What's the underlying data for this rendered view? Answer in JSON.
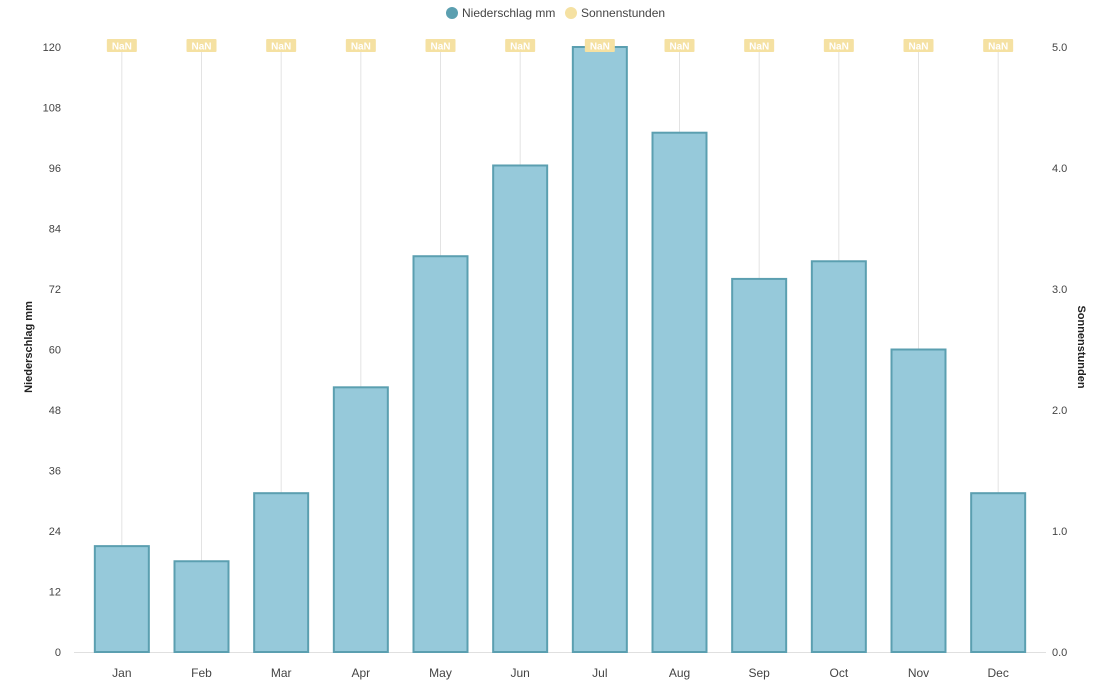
{
  "chart_data": {
    "type": "bar",
    "categories": [
      "Jan",
      "Feb",
      "Mar",
      "Apr",
      "May",
      "Jun",
      "Jul",
      "Aug",
      "Sep",
      "Oct",
      "Nov",
      "Dec"
    ],
    "series": [
      {
        "name": "Niederschlag mm",
        "type": "bar",
        "axis": "left",
        "color": "#5b9fb0",
        "fill": "#96c9da",
        "values": [
          21,
          18,
          31.5,
          52.5,
          78.5,
          96.5,
          120,
          103,
          74,
          77.5,
          60,
          31.5
        ]
      },
      {
        "name": "Sonnenstunden",
        "type": "line",
        "axis": "right",
        "color": "#f5e1a2",
        "values": [
          null,
          null,
          null,
          null,
          null,
          null,
          null,
          null,
          null,
          null,
          null,
          null
        ],
        "data_labels": [
          "NaN",
          "NaN",
          "NaN",
          "NaN",
          "NaN",
          "NaN",
          "NaN",
          "NaN",
          "NaN",
          "NaN",
          "NaN",
          "NaN"
        ]
      }
    ],
    "y_left": {
      "label": "Niederschlag mm",
      "range": [
        0,
        120
      ],
      "ticks": [
        "0",
        "12",
        "24",
        "36",
        "48",
        "60",
        "72",
        "84",
        "96",
        "108",
        "120"
      ]
    },
    "y_right": {
      "label": "Sonnenstunden",
      "range": [
        0,
        5
      ],
      "ticks": [
        "0.0",
        "1.0",
        "2.0",
        "3.0",
        "4.0",
        "5.0"
      ]
    },
    "legend": {
      "placement": "top-center",
      "items": [
        {
          "name": "Niederschlag mm",
          "color": "#5b9fb0"
        },
        {
          "name": "Sonnenstunden",
          "color": "#f5e1a2"
        }
      ]
    },
    "grid": {
      "vertical": true,
      "horizontal": false
    }
  }
}
